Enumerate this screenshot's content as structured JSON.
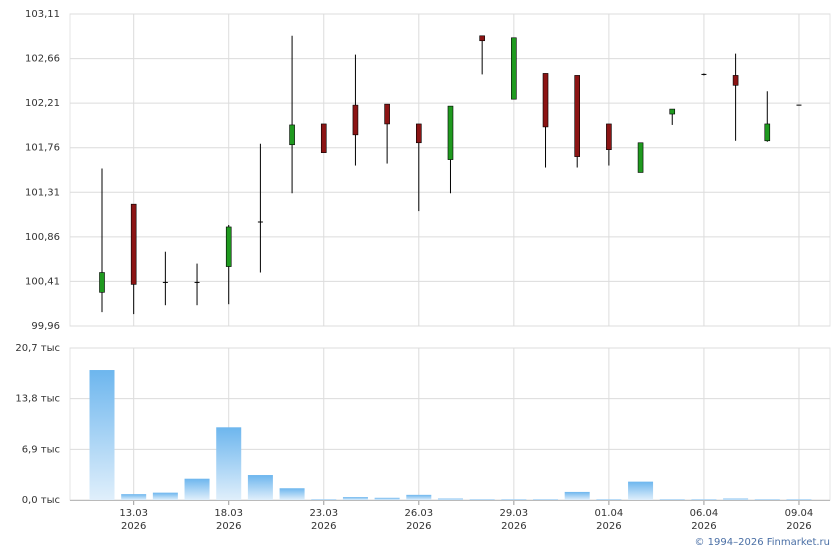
{
  "chart_data": [
    {
      "type": "candlestick",
      "open": [
        100.3,
        101.19,
        100.4,
        100.4,
        100.56,
        101.01,
        101.79,
        102.0,
        102.19,
        102.2,
        102.0,
        101.64,
        102.89,
        102.25,
        102.51,
        102.49,
        102.0,
        101.51,
        102.1,
        102.5,
        102.49,
        101.83,
        102.19
      ],
      "high": [
        101.55,
        101.19,
        100.71,
        100.59,
        100.98,
        101.8,
        102.89,
        102.0,
        102.7,
        102.2,
        102.0,
        102.18,
        102.89,
        102.87,
        102.51,
        102.49,
        102.0,
        101.81,
        102.15,
        102.51,
        102.71,
        102.33,
        102.19
      ],
      "low": [
        100.1,
        100.08,
        100.17,
        100.17,
        100.18,
        100.5,
        101.3,
        101.71,
        101.58,
        101.6,
        101.12,
        101.3,
        102.5,
        102.25,
        101.56,
        101.56,
        101.58,
        101.51,
        101.99,
        102.49,
        101.83,
        101.82,
        102.19
      ],
      "close": [
        100.5,
        100.38,
        100.4,
        100.4,
        100.96,
        101.01,
        101.99,
        101.71,
        101.89,
        102.0,
        101.81,
        102.18,
        102.84,
        102.87,
        101.97,
        101.67,
        101.74,
        101.81,
        102.15,
        102.5,
        102.39,
        102.0,
        102.19
      ],
      "up_color": "#1f9a1f",
      "down_color": "#8b1414",
      "ylim": [
        99.96,
        103.11
      ],
      "yticks": [
        {
          "value": 99.96,
          "label": "99,96"
        },
        {
          "value": 100.41,
          "label": "100,41"
        },
        {
          "value": 100.86,
          "label": "100,86"
        },
        {
          "value": 101.31,
          "label": "101,31"
        },
        {
          "value": 101.76,
          "label": "101,76"
        },
        {
          "value": 102.21,
          "label": "102,21"
        },
        {
          "value": 102.66,
          "label": "102,66"
        },
        {
          "value": 103.11,
          "label": "103,11"
        }
      ],
      "grid": true
    },
    {
      "type": "bar",
      "categories": [
        null,
        "13.03",
        null,
        null,
        "18.03",
        null,
        null,
        "23.03",
        null,
        null,
        "26.03",
        null,
        null,
        "29.03",
        null,
        null,
        "01.04",
        null,
        null,
        "06.04",
        null,
        null,
        "09.04"
      ],
      "category_years": [
        null,
        "2026",
        null,
        null,
        "2026",
        null,
        null,
        "2026",
        null,
        null,
        "2026",
        null,
        null,
        "2026",
        null,
        null,
        "2026",
        null,
        null,
        "2026",
        null,
        null,
        "2026"
      ],
      "values": [
        17.7,
        0.8,
        1.0,
        2.9,
        9.9,
        3.4,
        1.6,
        0.1,
        0.4,
        0.3,
        0.7,
        0.2,
        0.1,
        0.1,
        0.1,
        1.1,
        0.1,
        2.5,
        0.1,
        0.1,
        0.2,
        0.1,
        0.1
      ],
      "ylim": [
        0,
        20.7
      ],
      "yticks": [
        {
          "value": 0,
          "label": "0,0 тыс"
        },
        {
          "value": 6.9,
          "label": "6,9 тыс"
        },
        {
          "value": 13.8,
          "label": "13,8 тыс"
        },
        {
          "value": 20.7,
          "label": "20,7 тыс"
        }
      ],
      "grid": true
    }
  ],
  "footer": "© 1994–2026 Finmarket.ru"
}
